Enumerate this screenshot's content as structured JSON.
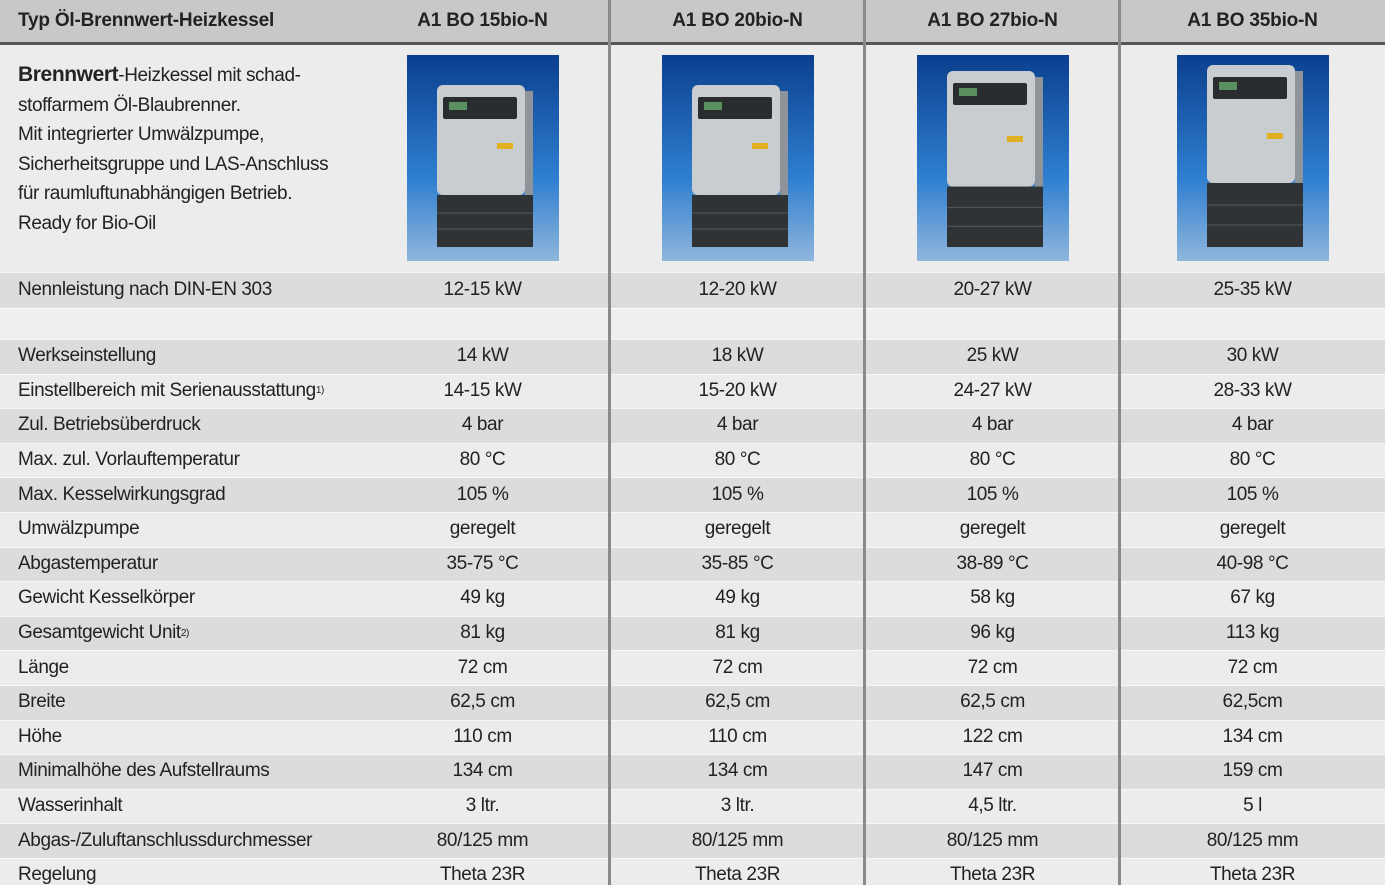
{
  "header": {
    "title": "Typ Öl-Brennwert-Heizkessel",
    "models": [
      "A1 BO 15bio-N",
      "A1 BO 20bio-N",
      "A1 BO 27bio-N",
      "A1 BO 35bio-N"
    ]
  },
  "intro": {
    "bold": "Brennwert",
    "lines": [
      "-Heizkessel mit schad-",
      "stoffarmem Öl-Blaubrenner.",
      "Mit integrierter Umwälzpumpe,",
      "Sicherheitsgruppe und LAS-Anschluss",
      "für raumluftunabhängigen Betrieb.",
      "Ready for Bio-Oil"
    ]
  },
  "rows": [
    {
      "label": "Nennleistung nach DIN-EN 303",
      "values": [
        "12-15 kW",
        "12-20 kW",
        "20-27 kW",
        "25-35 kW"
      ]
    },
    {
      "label": "Werkseinstellung",
      "values": [
        "14 kW",
        "18 kW",
        "25 kW",
        "30 kW"
      ]
    },
    {
      "label": "Einstellbereich mit Serienausstattung",
      "note": "1)",
      "values": [
        "14-15 kW",
        "15-20 kW",
        "24-27 kW",
        "28-33 kW"
      ]
    },
    {
      "label": "Zul. Betriebsüberdruck",
      "values": [
        "4 bar",
        "4 bar",
        "4 bar",
        "4 bar"
      ]
    },
    {
      "label": "Max. zul. Vorlauftemperatur",
      "values": [
        "80 °C",
        "80 °C",
        "80 °C",
        "80 °C"
      ]
    },
    {
      "label": "Max. Kesselwirkungsgrad",
      "values": [
        "105 %",
        "105 %",
        "105 %",
        "105 %"
      ]
    },
    {
      "label": "Umwälzpumpe",
      "values": [
        "geregelt",
        "geregelt",
        "geregelt",
        "geregelt"
      ]
    },
    {
      "label": "Abgastemperatur",
      "values": [
        "35-75 °C",
        "35-85 °C",
        "38-89 °C",
        "40-98 °C"
      ]
    },
    {
      "label": "Gewicht Kesselkörper",
      "values": [
        "49 kg",
        "49 kg",
        "58 kg",
        "67 kg"
      ]
    },
    {
      "label": "Gesamtgewicht Unit",
      "note": "2)",
      "values": [
        "81 kg",
        "81 kg",
        "96 kg",
        "113 kg"
      ]
    },
    {
      "label": "Länge",
      "values": [
        "72 cm",
        "72 cm",
        "72 cm",
        "72 cm"
      ]
    },
    {
      "label": "Breite",
      "values": [
        "62,5 cm",
        "62,5 cm",
        "62,5 cm",
        "62,5cm"
      ]
    },
    {
      "label": "Höhe",
      "values": [
        "110 cm",
        "110 cm",
        "122 cm",
        "134 cm"
      ]
    },
    {
      "label": "Minimalhöhe des Aufstellraums",
      "values": [
        "134 cm",
        "134 cm",
        "147 cm",
        "159 cm"
      ]
    },
    {
      "label": "Wasserinhalt",
      "values": [
        "3 ltr.",
        "3 ltr.",
        "4,5 ltr.",
        "5 l"
      ]
    },
    {
      "label": "Abgas-/Zuluftanschlussdurchmesser",
      "values": [
        "80/125 mm",
        "80/125 mm",
        "80/125 mm",
        "80/125 mm"
      ]
    },
    {
      "label": "Regelung",
      "values": [
        "Theta 23R",
        "Theta 23R",
        "Theta 23R",
        "Theta 23R"
      ]
    }
  ]
}
